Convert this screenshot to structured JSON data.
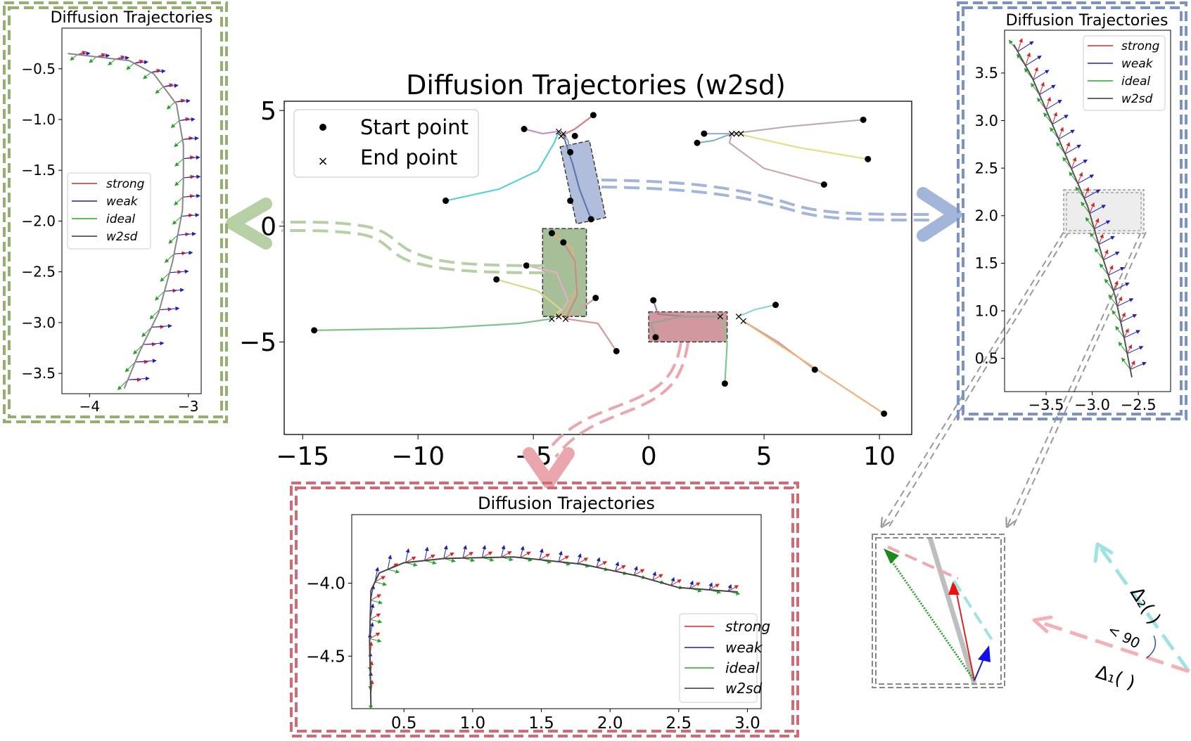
{
  "chart_data": [
    {
      "id": "main",
      "type": "line",
      "title": "Diffusion Trajectories (w2sd)",
      "xlabel": "",
      "ylabel": "",
      "xlim": [
        -15.8,
        11.4
      ],
      "ylim": [
        -9.0,
        5.4
      ],
      "xticks": [
        -15,
        -10,
        -5,
        0,
        5,
        10
      ],
      "xticklabels": [
        "−15",
        "−10",
        "−5",
        "0",
        "5",
        "10"
      ],
      "yticks": [
        5,
        0,
        -5
      ],
      "yticklabels": [
        "5",
        "0",
        "−5"
      ],
      "legend": {
        "position": "top-left",
        "entries": [
          {
            "label": "Start point",
            "marker": "dot",
            "color": "#000000"
          },
          {
            "label": "End point",
            "marker": "x",
            "color": "#dd2222"
          }
        ]
      },
      "start_points": [
        [
          -8.8,
          1.1
        ],
        [
          -5.4,
          4.2
        ],
        [
          -2.4,
          4.8
        ],
        [
          -3.2,
          3.9
        ],
        [
          -3.4,
          3.2
        ],
        [
          -3.4,
          1.1
        ],
        [
          -2.5,
          0.3
        ],
        [
          9.3,
          4.6
        ],
        [
          9.5,
          2.9
        ],
        [
          7.6,
          1.8
        ],
        [
          2.4,
          4.0
        ],
        [
          2.1,
          3.6
        ],
        [
          -4.2,
          -0.3
        ],
        [
          -3.7,
          -0.7
        ],
        [
          -5.3,
          -1.7
        ],
        [
          -6.6,
          -2.3
        ],
        [
          -2.3,
          -3.1
        ],
        [
          -14.5,
          -4.5
        ],
        [
          -1.4,
          -5.4
        ],
        [
          0.2,
          -3.2
        ],
        [
          0.3,
          -4.8
        ],
        [
          5.5,
          -3.4
        ],
        [
          3.3,
          -6.8
        ],
        [
          7.2,
          -6.2
        ],
        [
          10.2,
          -8.1
        ]
      ],
      "end_points": [
        [
          -3.9,
          4.1
        ],
        [
          -3.8,
          3.9
        ],
        [
          -3.7,
          4.0
        ],
        [
          3.6,
          4.0
        ],
        [
          3.8,
          4.0
        ],
        [
          4.0,
          4.0
        ],
        [
          -4.2,
          -4.0
        ],
        [
          -3.9,
          -3.9
        ],
        [
          -3.6,
          -4.0
        ],
        [
          3.1,
          -3.9
        ],
        [
          3.9,
          -3.9
        ],
        [
          4.1,
          -4.1
        ]
      ],
      "series": [
        {
          "color": "#5ccfd6",
          "points": [
            [
              -8.8,
              1.1
            ],
            [
              -6.5,
              1.6
            ],
            [
              -4.8,
              2.4
            ],
            [
              -4.1,
              3.6
            ],
            [
              -3.9,
              4.1
            ]
          ]
        },
        {
          "color": "#c58fcf",
          "points": [
            [
              -5.4,
              4.2
            ],
            [
              -4.6,
              4.0
            ],
            [
              -3.9,
              4.1
            ]
          ]
        },
        {
          "color": "#d27c7c",
          "points": [
            [
              -2.4,
              4.8
            ],
            [
              -3.2,
              4.2
            ],
            [
              -3.8,
              3.9
            ]
          ]
        },
        {
          "color": "#9fa3ba",
          "points": [
            [
              -3.4,
              3.2
            ],
            [
              -3.5,
              3.7
            ],
            [
              -3.7,
              4.0
            ]
          ]
        },
        {
          "color": "#5f78b0",
          "points": [
            [
              -2.5,
              0.3
            ],
            [
              -3.0,
              1.6
            ],
            [
              -3.3,
              2.7
            ],
            [
              -3.6,
              3.6
            ],
            [
              -3.7,
              4.0
            ]
          ]
        },
        {
          "color": "#bcadb0",
          "points": [
            [
              9.3,
              4.6
            ],
            [
              6.0,
              4.3
            ],
            [
              3.6,
              4.0
            ]
          ]
        },
        {
          "color": "#dfe08a",
          "points": [
            [
              9.5,
              2.9
            ],
            [
              6.5,
              3.4
            ],
            [
              3.8,
              4.0
            ]
          ]
        },
        {
          "color": "#c7a9a9",
          "points": [
            [
              7.6,
              1.8
            ],
            [
              5.0,
              2.5
            ],
            [
              3.5,
              3.6
            ],
            [
              3.6,
              4.0
            ]
          ]
        },
        {
          "color": "#7fb5b5",
          "points": [
            [
              2.1,
              3.6
            ],
            [
              2.8,
              3.7
            ],
            [
              3.6,
              4.0
            ]
          ]
        },
        {
          "color": "#9ab0d9",
          "points": [
            [
              2.4,
              4.0
            ],
            [
              3.0,
              4.0
            ],
            [
              3.6,
              4.0
            ]
          ]
        },
        {
          "color": "#e0b27a",
          "points": [
            [
              -4.2,
              -0.3
            ],
            [
              -3.3,
              -1.0
            ],
            [
              -3.1,
              -2.6
            ],
            [
              -3.6,
              -3.8
            ],
            [
              -3.9,
              -3.9
            ]
          ]
        },
        {
          "color": "#c18f8f",
          "points": [
            [
              -3.7,
              -0.7
            ],
            [
              -3.2,
              -1.5
            ],
            [
              -3.1,
              -3.0
            ],
            [
              -3.6,
              -4.0
            ]
          ]
        },
        {
          "color": "#e0b0c4",
          "points": [
            [
              -5.3,
              -1.7
            ],
            [
              -4.0,
              -2.0
            ],
            [
              -3.5,
              -3.2
            ],
            [
              -3.9,
              -3.9
            ]
          ]
        },
        {
          "color": "#d8d88a",
          "points": [
            [
              -6.6,
              -2.3
            ],
            [
              -4.8,
              -2.8
            ],
            [
              -3.8,
              -3.6
            ],
            [
              -4.2,
              -4.0
            ]
          ]
        },
        {
          "color": "#caa1a1",
          "points": [
            [
              -2.3,
              -3.1
            ],
            [
              -3.0,
              -3.6
            ],
            [
              -3.6,
              -4.0
            ]
          ]
        },
        {
          "color": "#7fc48f",
          "points": [
            [
              -14.5,
              -4.5
            ],
            [
              -9.0,
              -4.4
            ],
            [
              -5.6,
              -4.2
            ],
            [
              -4.2,
              -4.0
            ]
          ]
        },
        {
          "color": "#d79a9a",
          "points": [
            [
              -1.4,
              -5.4
            ],
            [
              -2.2,
              -4.2
            ],
            [
              -3.6,
              -4.0
            ]
          ]
        },
        {
          "color": "#b47b86",
          "points": [
            [
              0.2,
              -3.2
            ],
            [
              0.4,
              -3.8
            ],
            [
              1.6,
              -3.9
            ],
            [
              3.1,
              -3.9
            ]
          ]
        },
        {
          "color": "#9e9e9e",
          "points": [
            [
              0.3,
              -4.8
            ],
            [
              0.1,
              -4.2
            ],
            [
              1.4,
              -3.9
            ],
            [
              3.1,
              -3.9
            ]
          ]
        },
        {
          "color": "#8ed4dd",
          "points": [
            [
              5.5,
              -3.4
            ],
            [
              4.6,
              -3.6
            ],
            [
              3.9,
              -3.9
            ]
          ]
        },
        {
          "color": "#7fc88b",
          "points": [
            [
              3.3,
              -6.8
            ],
            [
              3.4,
              -5.1
            ],
            [
              3.2,
              -4.0
            ],
            [
              3.1,
              -3.9
            ]
          ]
        },
        {
          "color": "#c8a0a0",
          "points": [
            [
              7.2,
              -6.2
            ],
            [
              5.6,
              -5.0
            ],
            [
              4.1,
              -4.1
            ]
          ]
        },
        {
          "color": "#f0b27a",
          "points": [
            [
              10.2,
              -8.1
            ],
            [
              7.3,
              -6.2
            ],
            [
              4.1,
              -4.1
            ]
          ]
        }
      ],
      "highlights": [
        {
          "color": "#6f86bd",
          "x": [
            -3.5,
            -2.2
          ],
          "y": [
            0.2,
            3.6
          ],
          "rotate_deg": -12
        },
        {
          "color": "#5e8a45",
          "x": [
            -4.6,
            -2.7
          ],
          "y": [
            -3.9,
            -0.1
          ]
        },
        {
          "color": "#a84550",
          "x": [
            0.0,
            3.4
          ],
          "y": [
            -5.0,
            -3.7
          ]
        }
      ]
    },
    {
      "id": "left",
      "type": "line",
      "title": "Diffusion Trajectories",
      "xlim": [
        -4.28,
        -2.87
      ],
      "ylim": [
        -3.7,
        -0.1
      ],
      "xticks": [
        -4,
        -3
      ],
      "xticklabels": [
        "−4",
        "−3"
      ],
      "yticks": [
        -0.5,
        -1.0,
        -1.5,
        -2.0,
        -2.5,
        -3.0,
        -3.5
      ],
      "yticklabels": [
        "−0.5",
        "−1.0",
        "−1.5",
        "−2.0",
        "−2.5",
        "−3.0",
        "−3.5"
      ],
      "legend": {
        "position": "center-left",
        "entries": [
          {
            "label": "strong",
            "color": "#d62728"
          },
          {
            "label": "weak",
            "color": "#1f1fb4"
          },
          {
            "label": "ideal",
            "color": "#2ca02c"
          },
          {
            "label": "w2sd",
            "color": "#333333"
          }
        ]
      },
      "path": [
        [
          -3.65,
          -3.65
        ],
        [
          -3.5,
          -3.3
        ],
        [
          -3.3,
          -2.9
        ],
        [
          -3.16,
          -2.4
        ],
        [
          -3.06,
          -1.9
        ],
        [
          -3.05,
          -1.6
        ],
        [
          -3.05,
          -1.25
        ],
        [
          -3.12,
          -0.85
        ],
        [
          -3.35,
          -0.55
        ],
        [
          -3.6,
          -0.42
        ],
        [
          -4.22,
          -0.35
        ]
      ]
    },
    {
      "id": "right",
      "type": "line",
      "title": "Diffusion Trajectories",
      "xlim": [
        -3.95,
        -2.15
      ],
      "ylim": [
        0.15,
        3.95
      ],
      "xticks": [
        -3.5,
        -3.0,
        -2.5
      ],
      "xticklabels": [
        "−3.5",
        "−3.0",
        "−2.5"
      ],
      "yticks": [
        3.5,
        3.0,
        2.5,
        2.0,
        1.5,
        1.0,
        0.5
      ],
      "yticklabels": [
        "3.5",
        "3.0",
        "2.5",
        "2.0",
        "1.5",
        "1.0",
        "0.5"
      ],
      "legend": {
        "position": "top-right",
        "entries": [
          {
            "label": "strong",
            "color": "#d62728"
          },
          {
            "label": "weak",
            "color": "#1f1fb4"
          },
          {
            "label": "ideal",
            "color": "#2ca02c"
          },
          {
            "label": "w2sd",
            "color": "#333333"
          }
        ]
      },
      "path": [
        [
          -3.85,
          3.8
        ],
        [
          -3.65,
          3.45
        ],
        [
          -3.45,
          3.0
        ],
        [
          -3.25,
          2.55
        ],
        [
          -3.05,
          2.1
        ],
        [
          -2.9,
          1.6
        ],
        [
          -2.75,
          1.15
        ],
        [
          -2.65,
          0.7
        ],
        [
          -2.57,
          0.3
        ]
      ]
    },
    {
      "id": "bottom",
      "type": "line",
      "title": "Diffusion Trajectories",
      "xlim": [
        0.12,
        3.1
      ],
      "ylim": [
        -4.86,
        -3.53
      ],
      "xticks": [
        0.5,
        1.0,
        1.5,
        2.0,
        2.5,
        3.0
      ],
      "xticklabels": [
        "0.5",
        "1.0",
        "1.5",
        "2.0",
        "2.5",
        "3.0"
      ],
      "yticks": [
        -4.0,
        -4.5
      ],
      "yticklabels": [
        "−4.0",
        "−4.5"
      ],
      "legend": {
        "position": "bottom-right",
        "entries": [
          {
            "label": "strong",
            "color": "#d62728"
          },
          {
            "label": "weak",
            "color": "#1f1fb4"
          },
          {
            "label": "ideal",
            "color": "#2ca02c"
          },
          {
            "label": "w2sd",
            "color": "#333333"
          }
        ]
      },
      "path": [
        [
          0.26,
          -4.84
        ],
        [
          0.25,
          -4.4
        ],
        [
          0.26,
          -4.05
        ],
        [
          0.32,
          -3.93
        ],
        [
          0.5,
          -3.86
        ],
        [
          0.8,
          -3.83
        ],
        [
          1.3,
          -3.82
        ],
        [
          1.8,
          -3.87
        ],
        [
          2.2,
          -3.95
        ],
        [
          2.5,
          -4.03
        ],
        [
          2.93,
          -4.06
        ]
      ]
    }
  ],
  "angle_inset": {
    "delta2_label": "Δ₂( )",
    "delta1_label": "Δ₁( )",
    "angle_label": "< 90"
  }
}
